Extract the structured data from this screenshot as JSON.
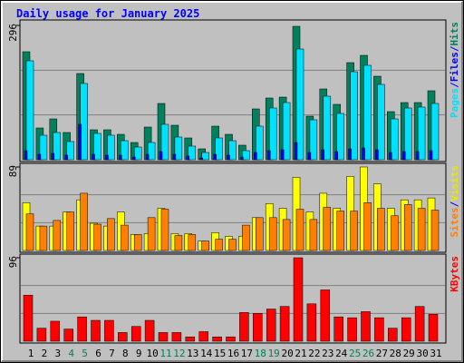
{
  "title": "Daily usage for January 2025",
  "chart_data": [
    {
      "type": "bar",
      "ylim": [
        0,
        296
      ],
      "yticks": [
        296
      ],
      "legend_separator": "/",
      "series": [
        {
          "name": "Hits",
          "color": "#00805c",
          "values": [
            238,
            70,
            90,
            60,
            190,
            66,
            66,
            56,
            38,
            72,
            124,
            76,
            48,
            24,
            74,
            56,
            32,
            112,
            136,
            138,
            294,
            96,
            156,
            122,
            214,
            230,
            184,
            106,
            126,
            126,
            152
          ]
        },
        {
          "name": "Files",
          "color": "#0000ff",
          "values": [
            20,
            12,
            14,
            10,
            78,
            12,
            10,
            10,
            6,
            12,
            18,
            12,
            8,
            4,
            12,
            10,
            6,
            16,
            20,
            22,
            38,
            16,
            22,
            18,
            24,
            26,
            22,
            16,
            18,
            18,
            20
          ]
        },
        {
          "name": "Pages",
          "color": "#00e0ff",
          "values": [
            218,
            54,
            60,
            40,
            168,
            58,
            54,
            42,
            28,
            38,
            78,
            50,
            30,
            16,
            48,
            42,
            20,
            74,
            114,
            126,
            244,
            88,
            140,
            102,
            194,
            208,
            166,
            90,
            114,
            116,
            124
          ]
        }
      ]
    },
    {
      "type": "bar",
      "ylim": [
        0,
        89
      ],
      "yticks": [
        89
      ],
      "legend_separator": "/",
      "series": [
        {
          "name": "Visits",
          "color": "#ffff00",
          "values": [
            51,
            26,
            26,
            41,
            54,
            29,
            26,
            41,
            17,
            18,
            45,
            18,
            18,
            10,
            19,
            15,
            15,
            35,
            50,
            45,
            78,
            41,
            61,
            45,
            79,
            89,
            71,
            45,
            54,
            54,
            56
          ]
        },
        {
          "name": "Sites",
          "color": "#ff8000",
          "values": [
            39,
            26,
            32,
            41,
            61,
            28,
            34,
            27,
            17,
            35,
            44,
            16,
            17,
            10,
            12,
            12,
            27,
            35,
            35,
            33,
            44,
            33,
            46,
            42,
            42,
            51,
            45,
            37,
            49,
            45,
            43
          ]
        }
      ]
    },
    {
      "type": "bar",
      "ylim": [
        0,
        96
      ],
      "yticks": [
        96
      ],
      "series": [
        {
          "name": "KBytes",
          "color": "#ff0000",
          "values": [
            53,
            15,
            23,
            14,
            28,
            24,
            24,
            10,
            17,
            24,
            10,
            10,
            5,
            11,
            5,
            5,
            33,
            32,
            37,
            40,
            96,
            43,
            59,
            28,
            27,
            34,
            27,
            15,
            27,
            40,
            31
          ]
        }
      ],
      "categories": [
        "1",
        "2",
        "3",
        "4",
        "5",
        "6",
        "7",
        "8",
        "9",
        "10",
        "11",
        "12",
        "13",
        "14",
        "15",
        "16",
        "17",
        "18",
        "19",
        "20",
        "21",
        "22",
        "23",
        "24",
        "25",
        "26",
        "27",
        "28",
        "29",
        "30",
        "31"
      ],
      "category_colors": [
        "#000000",
        "#000000",
        "#000000",
        "#00805c",
        "#00805c",
        "#000000",
        "#000000",
        "#000000",
        "#000000",
        "#000000",
        "#00805c",
        "#00805c",
        "#000000",
        "#000000",
        "#000000",
        "#000000",
        "#000000",
        "#00805c",
        "#00805c",
        "#000000",
        "#000000",
        "#000000",
        "#000000",
        "#000000",
        "#00805c",
        "#00805c",
        "#000000",
        "#000000",
        "#000000",
        "#000000",
        "#000000"
      ]
    }
  ]
}
